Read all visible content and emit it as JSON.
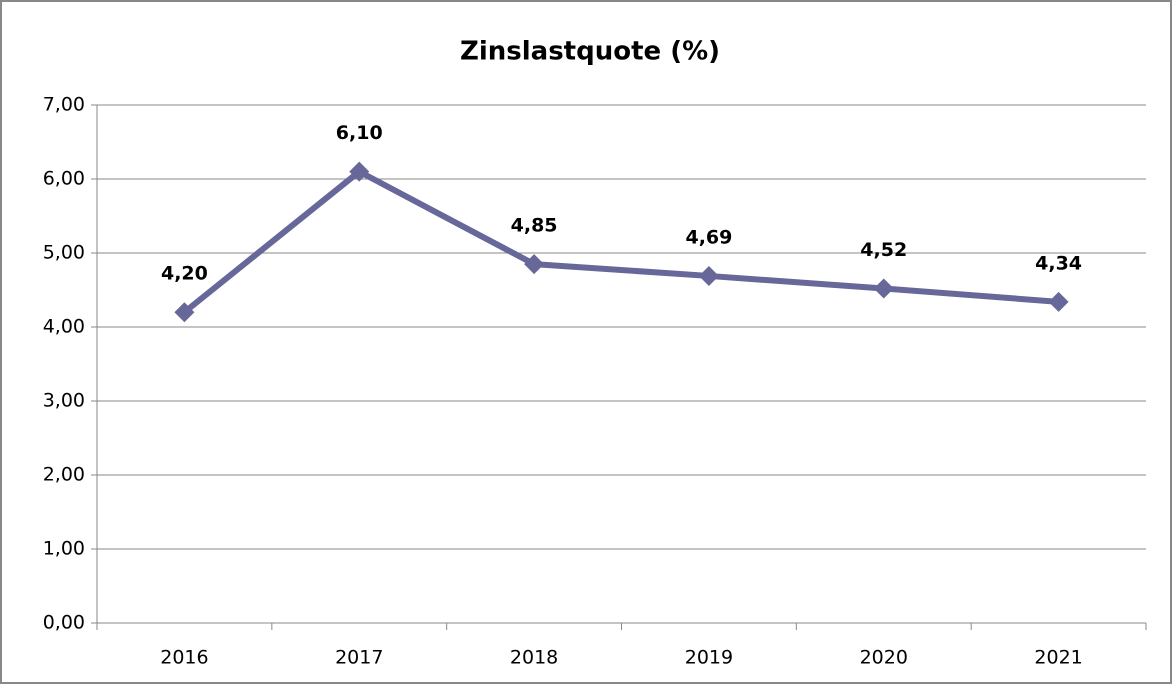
{
  "chart_data": {
    "type": "line",
    "title": "Zinslastquote (%)",
    "categories": [
      "2016",
      "2017",
      "2018",
      "2019",
      "2020",
      "2021"
    ],
    "values": [
      4.2,
      6.1,
      4.85,
      4.69,
      4.52,
      4.34
    ],
    "value_labels": [
      "4,20",
      "6,10",
      "4,85",
      "4,69",
      "4,52",
      "4,34"
    ],
    "color": "#67679a",
    "ylim": [
      0,
      7
    ],
    "yticks": [
      {
        "value": 0,
        "label": "0,00"
      },
      {
        "value": 1,
        "label": "1,00"
      },
      {
        "value": 2,
        "label": "2,00"
      },
      {
        "value": 3,
        "label": "3,00"
      },
      {
        "value": 4,
        "label": "4,00"
      },
      {
        "value": 5,
        "label": "5,00"
      },
      {
        "value": 6,
        "label": "6,00"
      },
      {
        "value": 7,
        "label": "7,00"
      }
    ],
    "grid": true
  }
}
